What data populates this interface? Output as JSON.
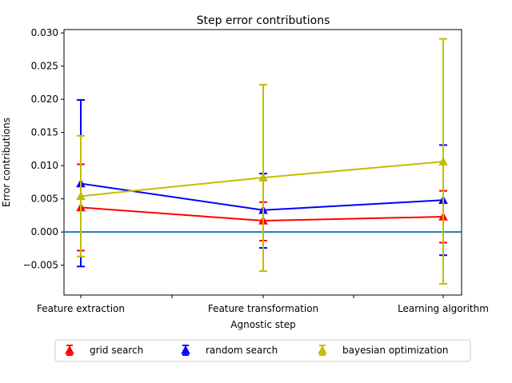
{
  "chart_data": {
    "type": "line",
    "title": "Step error contributions",
    "xlabel": "Agnostic step",
    "ylabel": "Error contributions",
    "categories": [
      "Feature extraction",
      "Feature transformation",
      "Learning algorithm"
    ],
    "ylim": [
      -0.0095,
      0.0305
    ],
    "yticks": [
      -0.005,
      0.0,
      0.005,
      0.01,
      0.015,
      0.02,
      0.025,
      0.03
    ],
    "ytick_labels": [
      "−0.005",
      "0.000",
      "0.005",
      "0.010",
      "0.015",
      "0.020",
      "0.025",
      "0.030"
    ],
    "reference_line": {
      "y": 0.0,
      "color": "#1f77b4"
    },
    "legend_position": "bottom-center",
    "grid": false,
    "series": [
      {
        "name": "grid search",
        "color": "#ff0000",
        "marker": "triangle",
        "values": [
          0.0037,
          0.0017,
          0.0023
        ],
        "err_low": [
          -0.0028,
          -0.0013,
          -0.0016
        ],
        "err_high": [
          0.0102,
          0.0045,
          0.0062
        ]
      },
      {
        "name": "random search",
        "color": "#0000ff",
        "marker": "triangle",
        "values": [
          0.0073,
          0.0033,
          0.0048
        ],
        "err_low": [
          -0.0052,
          -0.0024,
          -0.0035
        ],
        "err_high": [
          0.0199,
          0.0088,
          0.0131
        ]
      },
      {
        "name": "bayesian optimization",
        "color": "#bfbf00",
        "marker": "triangle",
        "values": [
          0.0054,
          0.0082,
          0.0106
        ],
        "err_low": [
          -0.0037,
          -0.0059,
          -0.0078
        ],
        "err_high": [
          0.0145,
          0.0222,
          0.0291
        ]
      }
    ]
  }
}
